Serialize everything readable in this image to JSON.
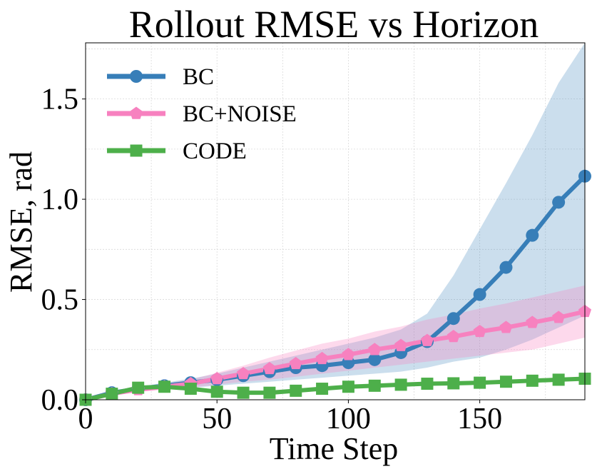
{
  "chart_data": {
    "type": "line",
    "title": "Rollout RMSE vs Horizon",
    "xlabel": "Time Step",
    "ylabel": "RMSE, rad",
    "xlim": [
      0,
      190
    ],
    "ylim": [
      0,
      1.78
    ],
    "xticks": [
      0,
      50,
      100,
      150
    ],
    "xtick_labels": [
      "0",
      "50",
      "100",
      "150"
    ],
    "yticks": [
      0,
      0.5,
      1.0,
      1.5
    ],
    "ytick_labels": [
      "0.0",
      "0.5",
      "1.0",
      "1.5"
    ],
    "grid": true,
    "legend_position": "top-left",
    "x": [
      0,
      10,
      20,
      30,
      40,
      50,
      60,
      70,
      80,
      90,
      100,
      110,
      120,
      130,
      140,
      150,
      160,
      170,
      180,
      190
    ],
    "series": [
      {
        "name": "BC",
        "color": "#377eb8",
        "marker": "circle",
        "values": [
          0.0,
          0.035,
          0.055,
          0.07,
          0.085,
          0.1,
          0.12,
          0.14,
          0.16,
          0.17,
          0.185,
          0.2,
          0.235,
          0.29,
          0.405,
          0.525,
          0.66,
          0.82,
          0.985,
          1.115
        ],
        "band_lower": [
          0.0,
          0.03,
          0.045,
          0.055,
          0.06,
          0.07,
          0.08,
          0.09,
          0.1,
          0.11,
          0.12,
          0.13,
          0.14,
          0.16,
          0.19,
          0.21,
          0.25,
          0.3,
          0.36,
          0.42
        ],
        "band_upper": [
          0.0,
          0.04,
          0.065,
          0.085,
          0.105,
          0.13,
          0.16,
          0.19,
          0.22,
          0.25,
          0.28,
          0.31,
          0.35,
          0.43,
          0.62,
          0.85,
          1.08,
          1.32,
          1.58,
          1.78
        ]
      },
      {
        "name": "BC+NOISE",
        "color": "#f781bf",
        "marker": "pentagon",
        "values": [
          0.0,
          0.03,
          0.05,
          0.065,
          0.08,
          0.105,
          0.13,
          0.155,
          0.18,
          0.205,
          0.225,
          0.25,
          0.27,
          0.295,
          0.315,
          0.34,
          0.36,
          0.385,
          0.41,
          0.44
        ],
        "band_lower": [
          0.0,
          0.025,
          0.04,
          0.05,
          0.06,
          0.075,
          0.09,
          0.1,
          0.115,
          0.13,
          0.145,
          0.16,
          0.175,
          0.19,
          0.205,
          0.22,
          0.235,
          0.25,
          0.28,
          0.31
        ],
        "band_upper": [
          0.0,
          0.035,
          0.06,
          0.08,
          0.1,
          0.135,
          0.17,
          0.21,
          0.245,
          0.28,
          0.305,
          0.34,
          0.365,
          0.4,
          0.425,
          0.455,
          0.48,
          0.51,
          0.54,
          0.57
        ]
      },
      {
        "name": "CODE",
        "color": "#4daf4a",
        "marker": "square",
        "values": [
          0.0,
          0.03,
          0.06,
          0.065,
          0.055,
          0.04,
          0.035,
          0.035,
          0.045,
          0.055,
          0.065,
          0.07,
          0.075,
          0.08,
          0.082,
          0.085,
          0.09,
          0.095,
          0.1,
          0.105
        ]
      }
    ]
  }
}
